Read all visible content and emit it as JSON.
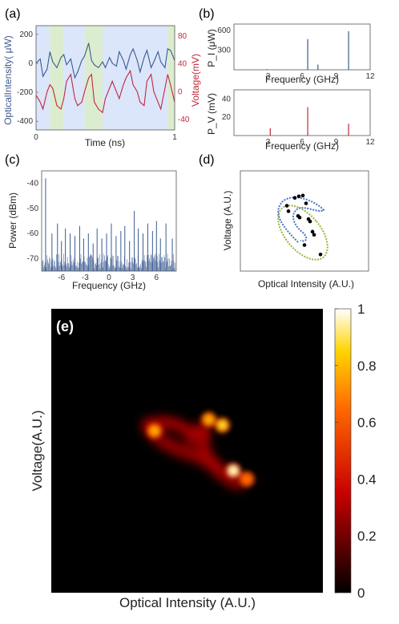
{
  "panel_labels": {
    "a": "(a)",
    "b": "(b)",
    "c": "(c)",
    "d": "(d)",
    "e": "(e)"
  },
  "colors": {
    "optical": "#3d5a8c",
    "voltage": "#c0283c",
    "bands_blue": "#dbe6fb",
    "bands_green": "#dceccf",
    "spectrum": "#3c5a92",
    "orbit_blue": "#4a74c7",
    "orbit_green": "#9ab43c",
    "heat_bg": "#000000"
  },
  "chart_data": [
    {
      "id": "a",
      "type": "line",
      "xlabel": "Time (ns)",
      "ylabel_left": "OpticalIntensity( μW)",
      "ylabel_right": "Voltage(mV)",
      "xlim": [
        0,
        1
      ],
      "ylim_left": [
        -460,
        260
      ],
      "ylim_right": [
        -55,
        95
      ],
      "x_ticks": [
        "0",
        "1"
      ],
      "y_left_ticks": [
        "200",
        "0",
        "-200",
        "-400"
      ],
      "y_right_ticks": [
        "80",
        "40",
        "0",
        "-40"
      ],
      "bands": [
        {
          "from": 0.0,
          "to": 0.1,
          "color": "blue"
        },
        {
          "from": 0.1,
          "to": 0.2,
          "color": "green"
        },
        {
          "from": 0.2,
          "to": 0.35,
          "color": "blue"
        },
        {
          "from": 0.35,
          "to": 0.48,
          "color": "green"
        },
        {
          "from": 0.48,
          "to": 0.95,
          "color": "blue"
        },
        {
          "from": 0.95,
          "to": 1.0,
          "color": "green"
        }
      ],
      "series": [
        {
          "axis": "left",
          "x": [
            0,
            0.03,
            0.05,
            0.08,
            0.1,
            0.12,
            0.15,
            0.18,
            0.2,
            0.22,
            0.25,
            0.28,
            0.3,
            0.33,
            0.35,
            0.38,
            0.4,
            0.42,
            0.45,
            0.48,
            0.5,
            0.53,
            0.55,
            0.58,
            0.6,
            0.63,
            0.65,
            0.68,
            0.7,
            0.73,
            0.75,
            0.78,
            0.8,
            0.83,
            0.85,
            0.88,
            0.9,
            0.93,
            0.95,
            0.97,
            1.0
          ],
          "values": [
            0,
            30,
            -90,
            -40,
            80,
            10,
            -30,
            40,
            60,
            -10,
            30,
            -100,
            -60,
            20,
            50,
            140,
            20,
            -10,
            -30,
            10,
            -30,
            40,
            0,
            -20,
            80,
            20,
            -40,
            60,
            100,
            20,
            -60,
            40,
            90,
            -30,
            10,
            80,
            10,
            -30,
            100,
            90,
            20
          ]
        },
        {
          "axis": "right",
          "x": [
            0,
            0.03,
            0.05,
            0.08,
            0.1,
            0.12,
            0.15,
            0.18,
            0.2,
            0.22,
            0.25,
            0.28,
            0.3,
            0.33,
            0.35,
            0.38,
            0.4,
            0.42,
            0.45,
            0.48,
            0.5,
            0.53,
            0.55,
            0.58,
            0.6,
            0.63,
            0.65,
            0.68,
            0.7,
            0.73,
            0.75,
            0.78,
            0.8,
            0.83,
            0.85,
            0.88,
            0.9,
            0.93,
            0.95,
            0.97,
            1.0
          ],
          "values": [
            -5,
            -15,
            -25,
            0,
            10,
            5,
            -20,
            -25,
            -10,
            15,
            25,
            -10,
            -20,
            -15,
            0,
            20,
            25,
            -15,
            -25,
            -30,
            -10,
            5,
            15,
            0,
            -10,
            10,
            20,
            30,
            10,
            0,
            -15,
            -20,
            15,
            25,
            0,
            -15,
            -25,
            5,
            25,
            10,
            -15
          ]
        }
      ]
    },
    {
      "id": "b_top",
      "type": "bar",
      "ylabel": "P_I (μW)",
      "xlabel": "Frequency (GHz)",
      "xlim": [
        0,
        12
      ],
      "ylim": [
        0,
        700
      ],
      "x_ticks": [
        "3",
        "6",
        "9",
        "12"
      ],
      "y_ticks": [
        "600",
        "300"
      ],
      "x": [
        2.9,
        6.5,
        7.4,
        10.1
      ],
      "values": [
        10,
        470,
        80,
        590
      ]
    },
    {
      "id": "b_bottom",
      "type": "bar",
      "ylabel": "P_V (mV)",
      "xlabel": "Frequency (GHz)",
      "xlim": [
        0,
        12
      ],
      "ylim": [
        0,
        50
      ],
      "x_ticks": [
        "3",
        "6",
        "9",
        "12"
      ],
      "y_ticks": [
        "40",
        "20"
      ],
      "x": [
        3.2,
        6.5,
        10.1
      ],
      "values": [
        8,
        31,
        13
      ]
    },
    {
      "id": "c",
      "type": "bar",
      "xlabel": "Frequency (GHz)",
      "ylabel": "Power (dBm)",
      "xlim": [
        -8.5,
        8.5
      ],
      "ylim": [
        -75,
        -35
      ],
      "x_ticks": [
        "-6",
        "-3",
        "0",
        "3",
        "6"
      ],
      "y_ticks": [
        "-40",
        "-50",
        "-60",
        "-70"
      ],
      "x": [
        -8.0,
        -7.2,
        -6.5,
        -6.0,
        -5.5,
        -4.9,
        -4.3,
        -3.7,
        -3.2,
        -2.6,
        -2.0,
        -1.5,
        -0.9,
        -0.3,
        0.3,
        0.9,
        1.5,
        2.0,
        2.6,
        3.2,
        3.7,
        4.3,
        4.9,
        5.5,
        6.0,
        6.5,
        7.2,
        8.0
      ],
      "values": [
        -38,
        -60,
        -56,
        -63,
        -58,
        -60,
        -61,
        -57,
        -62,
        -60,
        -64,
        -58,
        -62,
        -60,
        -56,
        -61,
        -59,
        -57,
        -63,
        -51,
        -58,
        -60,
        -56,
        -59,
        -55,
        -62,
        -56,
        -62
      ]
    },
    {
      "id": "d",
      "type": "scatter",
      "xlabel": "Optical Intensity (A.U.)",
      "ylabel": "Voltage (A.U.)",
      "xlim": [
        0,
        1
      ],
      "ylim": [
        0,
        1
      ],
      "markers_x": [
        0.28,
        0.38,
        0.43,
        0.48,
        0.52,
        0.55,
        0.57,
        0.3,
        0.42,
        0.6,
        0.62,
        0.7,
        0.5,
        0.44
      ],
      "markers_y": [
        0.75,
        0.85,
        0.87,
        0.88,
        0.78,
        0.58,
        0.55,
        0.68,
        0.62,
        0.42,
        0.38,
        0.13,
        0.25,
        0.6
      ]
    },
    {
      "id": "e",
      "type": "heatmap",
      "xlabel": "Optical Intensity (A.U.)",
      "ylabel": "Voltage(A.U.)",
      "colorbar_ticks": [
        "1",
        "0.8",
        "0.6",
        "0.4",
        "0.2",
        "0"
      ],
      "clim": [
        0,
        1
      ],
      "hotspots": [
        {
          "x": 0.38,
          "y": 0.57,
          "value": 0.75
        },
        {
          "x": 0.58,
          "y": 0.61,
          "value": 0.8
        },
        {
          "x": 0.63,
          "y": 0.59,
          "value": 0.85
        },
        {
          "x": 0.67,
          "y": 0.43,
          "value": 0.95
        },
        {
          "x": 0.72,
          "y": 0.4,
          "value": 0.6
        }
      ]
    }
  ]
}
